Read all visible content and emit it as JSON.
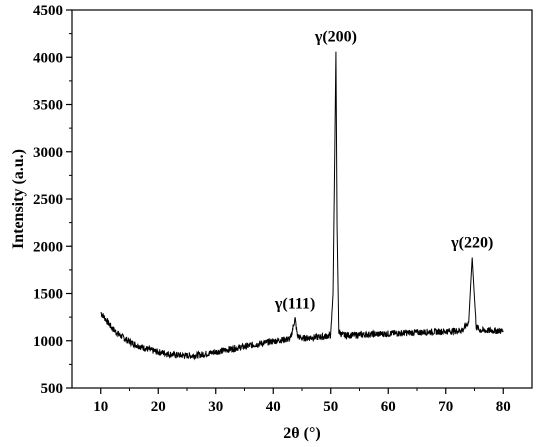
{
  "chart_data": {
    "type": "line",
    "title": "",
    "xlabel": "2θ (°)",
    "ylabel": "Intensity (a.u.)",
    "xlim": [
      5,
      85
    ],
    "ylim": [
      500,
      4500
    ],
    "xticks": [
      10,
      20,
      30,
      40,
      50,
      60,
      70,
      80
    ],
    "yticks": [
      500,
      1000,
      1500,
      2000,
      2500,
      3000,
      3500,
      4000,
      4500
    ],
    "grid": false,
    "line_color": "#000000",
    "series": [
      {
        "x": [
          10,
          11,
          12,
          13,
          14,
          15,
          16,
          17,
          18,
          19,
          20,
          21,
          22,
          23,
          24,
          25,
          26,
          27,
          28,
          29,
          30,
          31,
          32,
          33,
          34,
          35,
          36,
          37,
          38,
          39,
          40,
          41,
          42,
          43,
          43.5,
          43.8,
          44.2,
          45,
          46,
          47,
          48,
          49,
          50,
          50.4,
          50.7,
          50.9,
          51.1,
          51.4,
          52,
          53,
          54,
          55,
          56,
          57,
          58,
          59,
          60,
          61,
          62,
          63,
          64,
          65,
          66,
          67,
          68,
          69,
          70,
          71,
          72,
          73,
          74,
          74.3,
          74.6,
          74.9,
          75.3,
          76,
          77,
          78,
          79,
          80
        ],
        "y": [
          1300,
          1215,
          1130,
          1075,
          1030,
          990,
          960,
          935,
          915,
          895,
          880,
          870,
          858,
          850,
          845,
          843,
          843,
          848,
          858,
          870,
          882,
          893,
          905,
          916,
          928,
          938,
          950,
          962,
          973,
          984,
          995,
          1005,
          1012,
          1020,
          1160,
          1235,
          1050,
          1025,
          1030,
          1035,
          1040,
          1045,
          1060,
          1500,
          3000,
          4060,
          2200,
          1100,
          1060,
          1058,
          1060,
          1063,
          1066,
          1068,
          1070,
          1072,
          1075,
          1078,
          1080,
          1083,
          1085,
          1088,
          1090,
          1093,
          1095,
          1097,
          1100,
          1102,
          1105,
          1115,
          1200,
          1550,
          1880,
          1550,
          1150,
          1110,
          1108,
          1107,
          1106,
          1106
        ]
      }
    ],
    "annotations": [
      {
        "text": "γ(111)",
        "x": 43.8,
        "y": 1235
      },
      {
        "text": "γ(200)",
        "x": 50.9,
        "y": 4060
      },
      {
        "text": "γ(220)",
        "x": 74.6,
        "y": 1880
      }
    ]
  }
}
